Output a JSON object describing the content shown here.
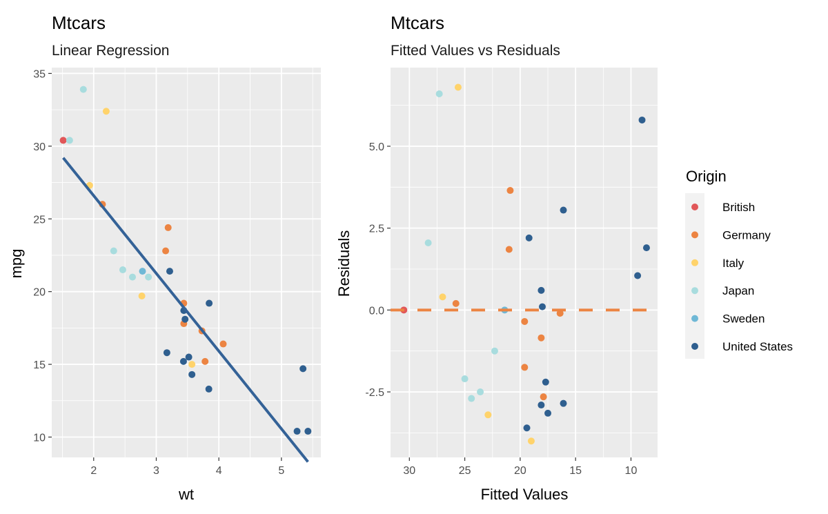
{
  "colors": {
    "British": "#e15759",
    "Germany": "#ec8442",
    "Italy": "#ffd36b",
    "Japan": "#a8dcde",
    "Sweden": "#6fb8d6",
    "United States": "#2f5f8f",
    "regression_line": "#346297",
    "zero_line": "#ec8442",
    "panel_bg": "#ebebeb",
    "grid": "#ffffff"
  },
  "legend": {
    "title": "Origin",
    "entries": [
      "British",
      "Germany",
      "Italy",
      "Japan",
      "Sweden",
      "United States"
    ]
  },
  "chart_data": [
    {
      "type": "scatter",
      "title": "Mtcars",
      "subtitle": "Linear Regression",
      "xlabel": "wt",
      "ylabel": "mpg",
      "xlim": [
        1.33,
        5.63
      ],
      "ylim": [
        8.6,
        35.4
      ],
      "xticks": [
        2,
        3,
        4,
        5
      ],
      "yticks": [
        10,
        15,
        20,
        25,
        30,
        35
      ],
      "xtick_labels": [
        "2",
        "3",
        "4",
        "5"
      ],
      "ytick_labels": [
        "10",
        "15",
        "20",
        "25",
        "30",
        "35"
      ],
      "regression_line": {
        "x": [
          1.513,
          5.424
        ],
        "y": [
          29.2,
          8.3
        ]
      },
      "points": [
        {
          "x": 1.513,
          "y": 30.4,
          "origin": "British"
        },
        {
          "x": 1.615,
          "y": 30.4,
          "origin": "Japan"
        },
        {
          "x": 1.835,
          "y": 33.9,
          "origin": "Japan"
        },
        {
          "x": 1.935,
          "y": 27.3,
          "origin": "Italy"
        },
        {
          "x": 2.14,
          "y": 26.0,
          "origin": "Germany"
        },
        {
          "x": 2.2,
          "y": 32.4,
          "origin": "Italy"
        },
        {
          "x": 2.32,
          "y": 22.8,
          "origin": "Japan"
        },
        {
          "x": 2.465,
          "y": 21.5,
          "origin": "Japan"
        },
        {
          "x": 2.62,
          "y": 21.0,
          "origin": "Japan"
        },
        {
          "x": 2.77,
          "y": 19.7,
          "origin": "Italy"
        },
        {
          "x": 2.78,
          "y": 21.4,
          "origin": "Sweden"
        },
        {
          "x": 2.875,
          "y": 21.0,
          "origin": "Japan"
        },
        {
          "x": 3.15,
          "y": 22.8,
          "origin": "Germany"
        },
        {
          "x": 3.17,
          "y": 15.8,
          "origin": "United States"
        },
        {
          "x": 3.19,
          "y": 24.4,
          "origin": "Germany"
        },
        {
          "x": 3.215,
          "y": 21.4,
          "origin": "United States"
        },
        {
          "x": 3.435,
          "y": 15.2,
          "origin": "United States"
        },
        {
          "x": 3.44,
          "y": 18.7,
          "origin": "United States"
        },
        {
          "x": 3.44,
          "y": 17.8,
          "origin": "Germany"
        },
        {
          "x": 3.44,
          "y": 19.2,
          "origin": "Germany"
        },
        {
          "x": 3.46,
          "y": 18.1,
          "origin": "United States"
        },
        {
          "x": 3.52,
          "y": 15.5,
          "origin": "United States"
        },
        {
          "x": 3.57,
          "y": 14.3,
          "origin": "United States"
        },
        {
          "x": 3.57,
          "y": 15.0,
          "origin": "Italy"
        },
        {
          "x": 3.73,
          "y": 17.3,
          "origin": "Germany"
        },
        {
          "x": 3.78,
          "y": 15.2,
          "origin": "Germany"
        },
        {
          "x": 3.84,
          "y": 13.3,
          "origin": "United States"
        },
        {
          "x": 3.845,
          "y": 19.2,
          "origin": "United States"
        },
        {
          "x": 4.07,
          "y": 16.4,
          "origin": "Germany"
        },
        {
          "x": 5.25,
          "y": 10.4,
          "origin": "United States"
        },
        {
          "x": 5.345,
          "y": 14.7,
          "origin": "United States"
        },
        {
          "x": 5.424,
          "y": 10.4,
          "origin": "United States"
        }
      ]
    },
    {
      "type": "scatter",
      "title": "Mtcars",
      "subtitle": "Fitted Values vs Residuals",
      "xlabel": "Fitted Values",
      "ylabel": "Residuals",
      "x_reversed": true,
      "xlim": [
        31.7,
        7.6
      ],
      "ylim": [
        -4.5,
        7.4
      ],
      "xticks": [
        30,
        25,
        20,
        15,
        10
      ],
      "yticks": [
        -2.5,
        0.0,
        2.5,
        5.0
      ],
      "xtick_labels": [
        "30",
        "25",
        "20",
        "15",
        "10"
      ],
      "ytick_labels": [
        "-2.5",
        "0.0",
        "2.5",
        "5.0"
      ],
      "zero_line": 0.0,
      "points": [
        {
          "x": 30.5,
          "y": 0.0,
          "origin": "British"
        },
        {
          "x": 27.3,
          "y": 6.6,
          "origin": "Japan"
        },
        {
          "x": 25.6,
          "y": 6.8,
          "origin": "Italy"
        },
        {
          "x": 28.3,
          "y": 2.05,
          "origin": "Japan"
        },
        {
          "x": 27.0,
          "y": 0.4,
          "origin": "Italy"
        },
        {
          "x": 25.8,
          "y": 0.2,
          "origin": "Germany"
        },
        {
          "x": 25.0,
          "y": -2.1,
          "origin": "Japan"
        },
        {
          "x": 24.4,
          "y": -2.7,
          "origin": "Japan"
        },
        {
          "x": 23.6,
          "y": -2.5,
          "origin": "Japan"
        },
        {
          "x": 22.9,
          "y": -3.2,
          "origin": "Italy"
        },
        {
          "x": 22.3,
          "y": -1.25,
          "origin": "Japan"
        },
        {
          "x": 21.4,
          "y": 0.0,
          "origin": "Sweden"
        },
        {
          "x": 20.9,
          "y": 3.65,
          "origin": "Germany"
        },
        {
          "x": 21.0,
          "y": 1.85,
          "origin": "Germany"
        },
        {
          "x": 19.6,
          "y": -0.35,
          "origin": "Germany"
        },
        {
          "x": 19.6,
          "y": -1.75,
          "origin": "Germany"
        },
        {
          "x": 19.2,
          "y": 2.2,
          "origin": "United States"
        },
        {
          "x": 19.4,
          "y": -3.6,
          "origin": "United States"
        },
        {
          "x": 19.0,
          "y": -4.0,
          "origin": "Italy"
        },
        {
          "x": 18.1,
          "y": 0.6,
          "origin": "United States"
        },
        {
          "x": 18.0,
          "y": 0.1,
          "origin": "United States"
        },
        {
          "x": 18.1,
          "y": -0.85,
          "origin": "Germany"
        },
        {
          "x": 18.1,
          "y": -2.9,
          "origin": "United States"
        },
        {
          "x": 17.9,
          "y": -2.65,
          "origin": "Germany"
        },
        {
          "x": 17.7,
          "y": -2.2,
          "origin": "United States"
        },
        {
          "x": 17.5,
          "y": -3.15,
          "origin": "United States"
        },
        {
          "x": 16.4,
          "y": -0.1,
          "origin": "Germany"
        },
        {
          "x": 16.1,
          "y": 3.05,
          "origin": "United States"
        },
        {
          "x": 16.1,
          "y": -2.85,
          "origin": "United States"
        },
        {
          "x": 9.4,
          "y": 1.05,
          "origin": "United States"
        },
        {
          "x": 9.0,
          "y": 5.8,
          "origin": "United States"
        },
        {
          "x": 8.6,
          "y": 1.9,
          "origin": "United States"
        }
      ]
    }
  ]
}
